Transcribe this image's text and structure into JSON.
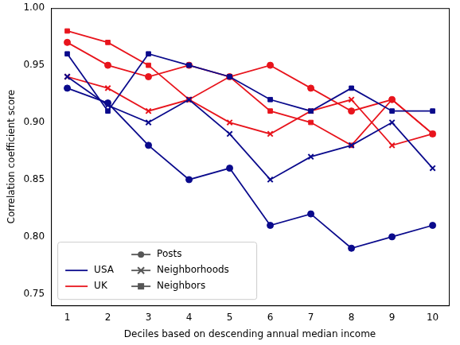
{
  "chart_data": {
    "type": "line",
    "x_label": "Deciles based on descending annual median income",
    "y_label": "Correlation coefficient score",
    "x": [
      1,
      2,
      3,
      4,
      5,
      6,
      7,
      8,
      9,
      10
    ],
    "series": [
      {
        "country": "USA",
        "metric": "Posts",
        "color": "#0a0a8c",
        "marker": "circle",
        "values": [
          0.93,
          0.917,
          0.88,
          0.85,
          0.86,
          0.81,
          0.82,
          0.79,
          0.8,
          0.81
        ]
      },
      {
        "country": "USA",
        "metric": "Neighborhoods",
        "color": "#0a0a8c",
        "marker": "x",
        "values": [
          0.94,
          0.915,
          0.9,
          0.92,
          0.89,
          0.85,
          0.87,
          0.88,
          0.9,
          0.86
        ]
      },
      {
        "country": "USA",
        "metric": "Neighbors",
        "color": "#0a0a8c",
        "marker": "square",
        "values": [
          0.96,
          0.91,
          0.96,
          0.95,
          0.94,
          0.92,
          0.91,
          0.93,
          0.91,
          0.91
        ]
      },
      {
        "country": "UK",
        "metric": "Posts",
        "color": "#e8141c",
        "marker": "circle",
        "values": [
          0.97,
          0.95,
          0.94,
          0.95,
          0.94,
          0.95,
          0.93,
          0.91,
          0.92,
          0.89
        ]
      },
      {
        "country": "UK",
        "metric": "Neighborhoods",
        "color": "#e8141c",
        "marker": "x",
        "values": [
          0.94,
          0.93,
          0.91,
          0.92,
          0.9,
          0.89,
          0.91,
          0.92,
          0.88,
          0.89
        ]
      },
      {
        "country": "UK",
        "metric": "Neighbors",
        "color": "#e8141c",
        "marker": "square",
        "values": [
          0.98,
          0.97,
          0.95,
          0.92,
          0.94,
          0.91,
          0.9,
          0.88,
          0.92,
          0.89
        ]
      }
    ],
    "xlim": [
      0.6,
      10.4
    ],
    "xticks": [
      1,
      2,
      3,
      4,
      5,
      6,
      7,
      8,
      9,
      10
    ],
    "ylim": [
      0.74,
      1.0
    ],
    "yticks": [
      {
        "value": 0.75,
        "label": "0.75"
      },
      {
        "value": 0.8,
        "label": "0.80"
      },
      {
        "value": 0.85,
        "label": "0.85"
      },
      {
        "value": 0.9,
        "label": "0.90"
      },
      {
        "value": 0.95,
        "label": "0.95"
      },
      {
        "value": 1.0,
        "label": "1.00"
      }
    ],
    "grid": false,
    "legend": "lower left"
  }
}
